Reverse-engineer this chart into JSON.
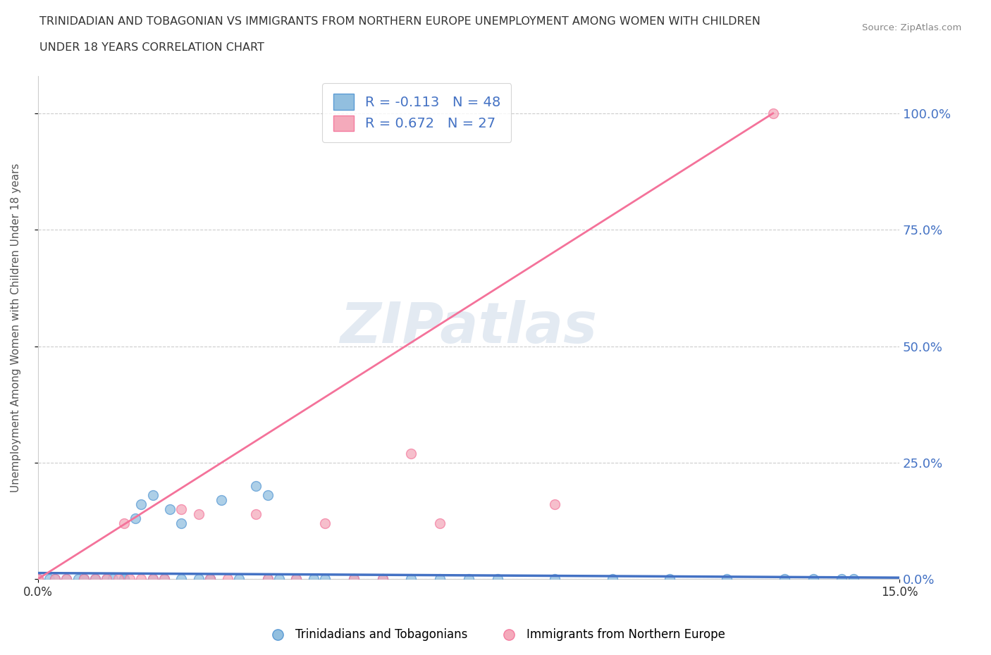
{
  "title_line1": "TRINIDADIAN AND TOBAGONIAN VS IMMIGRANTS FROM NORTHERN EUROPE UNEMPLOYMENT AMONG WOMEN WITH CHILDREN",
  "title_line2": "UNDER 18 YEARS CORRELATION CHART",
  "source": "Source: ZipAtlas.com",
  "ylabel": "Unemployment Among Women with Children Under 18 years",
  "xlim": [
    0.0,
    0.15
  ],
  "ylim": [
    0.0,
    1.08
  ],
  "ytick_values": [
    0.0,
    0.25,
    0.5,
    0.75,
    1.0
  ],
  "ytick_labels": [
    "0.0%",
    "25.0%",
    "50.0%",
    "75.0%",
    "100.0%"
  ],
  "xtick_values": [
    0.0,
    0.15
  ],
  "xtick_labels": [
    "0.0%",
    "15.0%"
  ],
  "blue_color": "#92BFDF",
  "pink_color": "#F4AABB",
  "blue_edge_color": "#5B9BD5",
  "pink_edge_color": "#F47CA0",
  "blue_line_color": "#4472C4",
  "pink_line_color": "#F4729A",
  "text_color": "#4472C4",
  "R_blue": -0.113,
  "N_blue": 48,
  "R_pink": 0.672,
  "N_pink": 27,
  "legend_label_blue": "Trinidadians and Tobagonians",
  "legend_label_pink": "Immigrants from Northern Europe",
  "watermark": "ZIPatlas",
  "blue_x": [
    0.0,
    0.002,
    0.003,
    0.005,
    0.007,
    0.008,
    0.008,
    0.01,
    0.01,
    0.012,
    0.013,
    0.015,
    0.015,
    0.015,
    0.017,
    0.018,
    0.02,
    0.02,
    0.022,
    0.023,
    0.025,
    0.025,
    0.028,
    0.03,
    0.03,
    0.032,
    0.035,
    0.038,
    0.04,
    0.04,
    0.042,
    0.045,
    0.048,
    0.05,
    0.055,
    0.06,
    0.065,
    0.07,
    0.075,
    0.08,
    0.09,
    0.1,
    0.11,
    0.12,
    0.13,
    0.135,
    0.14,
    0.142
  ],
  "blue_y": [
    0.0,
    0.0,
    0.0,
    0.0,
    0.0,
    0.0,
    0.0,
    0.0,
    0.0,
    0.0,
    0.0,
    0.0,
    0.0,
    0.0,
    0.13,
    0.16,
    0.0,
    0.18,
    0.0,
    0.15,
    0.0,
    0.12,
    0.0,
    0.0,
    0.0,
    0.17,
    0.0,
    0.2,
    0.0,
    0.18,
    0.0,
    0.0,
    0.0,
    0.0,
    0.0,
    0.0,
    0.0,
    0.0,
    0.0,
    0.0,
    0.0,
    0.0,
    0.0,
    0.0,
    0.0,
    0.0,
    0.0,
    0.0
  ],
  "pink_x": [
    0.0,
    0.0,
    0.003,
    0.005,
    0.008,
    0.01,
    0.012,
    0.014,
    0.015,
    0.016,
    0.018,
    0.02,
    0.022,
    0.025,
    0.028,
    0.03,
    0.033,
    0.038,
    0.04,
    0.045,
    0.05,
    0.055,
    0.06,
    0.065,
    0.07,
    0.09,
    0.128
  ],
  "pink_y": [
    0.0,
    0.0,
    0.0,
    0.0,
    0.0,
    0.0,
    0.0,
    0.0,
    0.12,
    0.0,
    0.0,
    0.0,
    0.0,
    0.15,
    0.14,
    0.0,
    0.0,
    0.14,
    0.0,
    0.0,
    0.12,
    0.0,
    0.0,
    0.27,
    0.12,
    0.16,
    1.0
  ],
  "blue_line_x0": 0.0,
  "blue_line_x1": 0.15,
  "blue_line_y0": 0.013,
  "blue_line_y1": 0.003,
  "pink_line_x0": 0.0,
  "pink_line_x1": 0.128,
  "pink_line_y0": 0.0,
  "pink_line_y1": 1.0
}
